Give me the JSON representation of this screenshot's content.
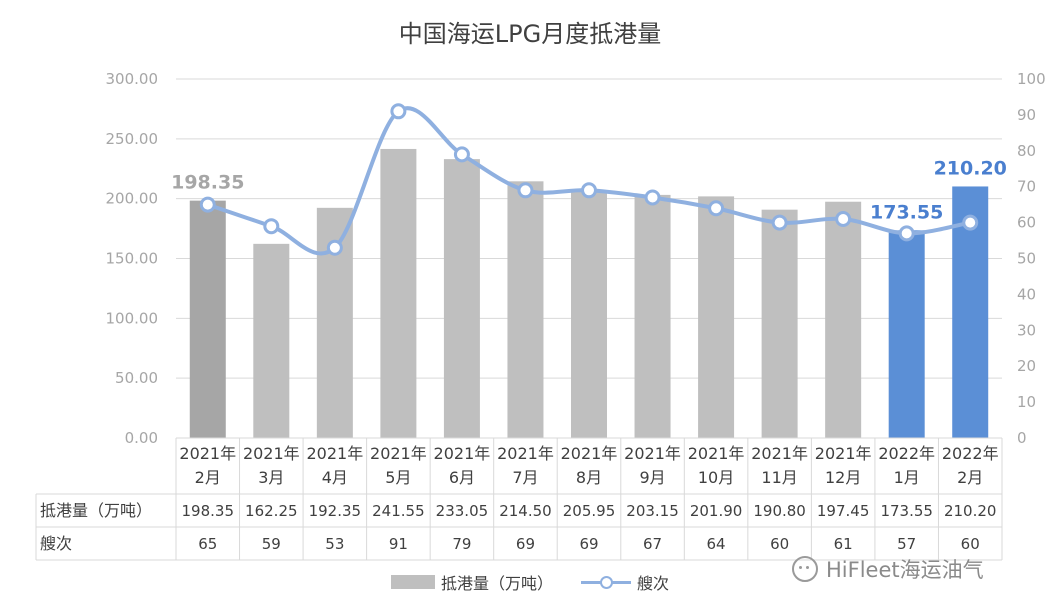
{
  "chart_data": {
    "type": "bar",
    "title": "中国海运LPG月度抵港量",
    "categories": [
      {
        "year": "2021年",
        "month": "2月"
      },
      {
        "year": "2021年",
        "month": "3月"
      },
      {
        "year": "2021年",
        "month": "4月"
      },
      {
        "year": "2021年",
        "month": "5月"
      },
      {
        "year": "2021年",
        "month": "6月"
      },
      {
        "year": "2021年",
        "month": "7月"
      },
      {
        "year": "2021年",
        "month": "8月"
      },
      {
        "year": "2021年",
        "month": "9月"
      },
      {
        "year": "2021年",
        "month": "10月"
      },
      {
        "year": "2021年",
        "month": "11月"
      },
      {
        "year": "2021年",
        "month": "12月"
      },
      {
        "year": "2022年",
        "month": "1月"
      },
      {
        "year": "2022年",
        "month": "2月"
      }
    ],
    "series": [
      {
        "name": "抵港量（万吨）",
        "type": "bar",
        "axis": "left",
        "values": [
          198.35,
          162.25,
          192.35,
          241.55,
          233.05,
          214.5,
          205.95,
          203.15,
          201.9,
          190.8,
          197.45,
          173.55,
          210.2
        ],
        "table_values": [
          "198.35",
          "162.25",
          "192.35",
          "241.55",
          "233.05",
          "214.50",
          "205.95",
          "203.15",
          "201.90",
          "190.80",
          "197.45",
          "173.55",
          "210.20"
        ],
        "color": "#bfbfbf",
        "highlight_colors": {
          "0": "#a6a6a6",
          "11": "#5b8fd6",
          "12": "#5b8fd6"
        }
      },
      {
        "name": "艘次",
        "type": "line",
        "axis": "right",
        "values": [
          65,
          59,
          53,
          91,
          79,
          69,
          69,
          67,
          64,
          60,
          61,
          57,
          60
        ],
        "color": "#8fb0e0"
      }
    ],
    "annotations": [
      {
        "index": 0,
        "text": "198.35",
        "color": "#a6a6a6"
      },
      {
        "index": 11,
        "text": "173.55",
        "color": "#4a7fcf"
      },
      {
        "index": 12,
        "text": "210.20",
        "color": "#4a7fcf"
      }
    ],
    "left_axis": {
      "range": [
        0,
        300
      ],
      "ticks": [
        "0.00",
        "50.00",
        "100.00",
        "150.00",
        "200.00",
        "250.00",
        "300.00"
      ]
    },
    "right_axis": {
      "range": [
        0,
        100
      ],
      "ticks": [
        "0",
        "10",
        "20",
        "30",
        "40",
        "50",
        "60",
        "70",
        "80",
        "90",
        "100"
      ]
    },
    "grid": true,
    "legend": "bottom-center",
    "data_table": true
  },
  "watermark": {
    "text": "HiFleet海运油气"
  }
}
